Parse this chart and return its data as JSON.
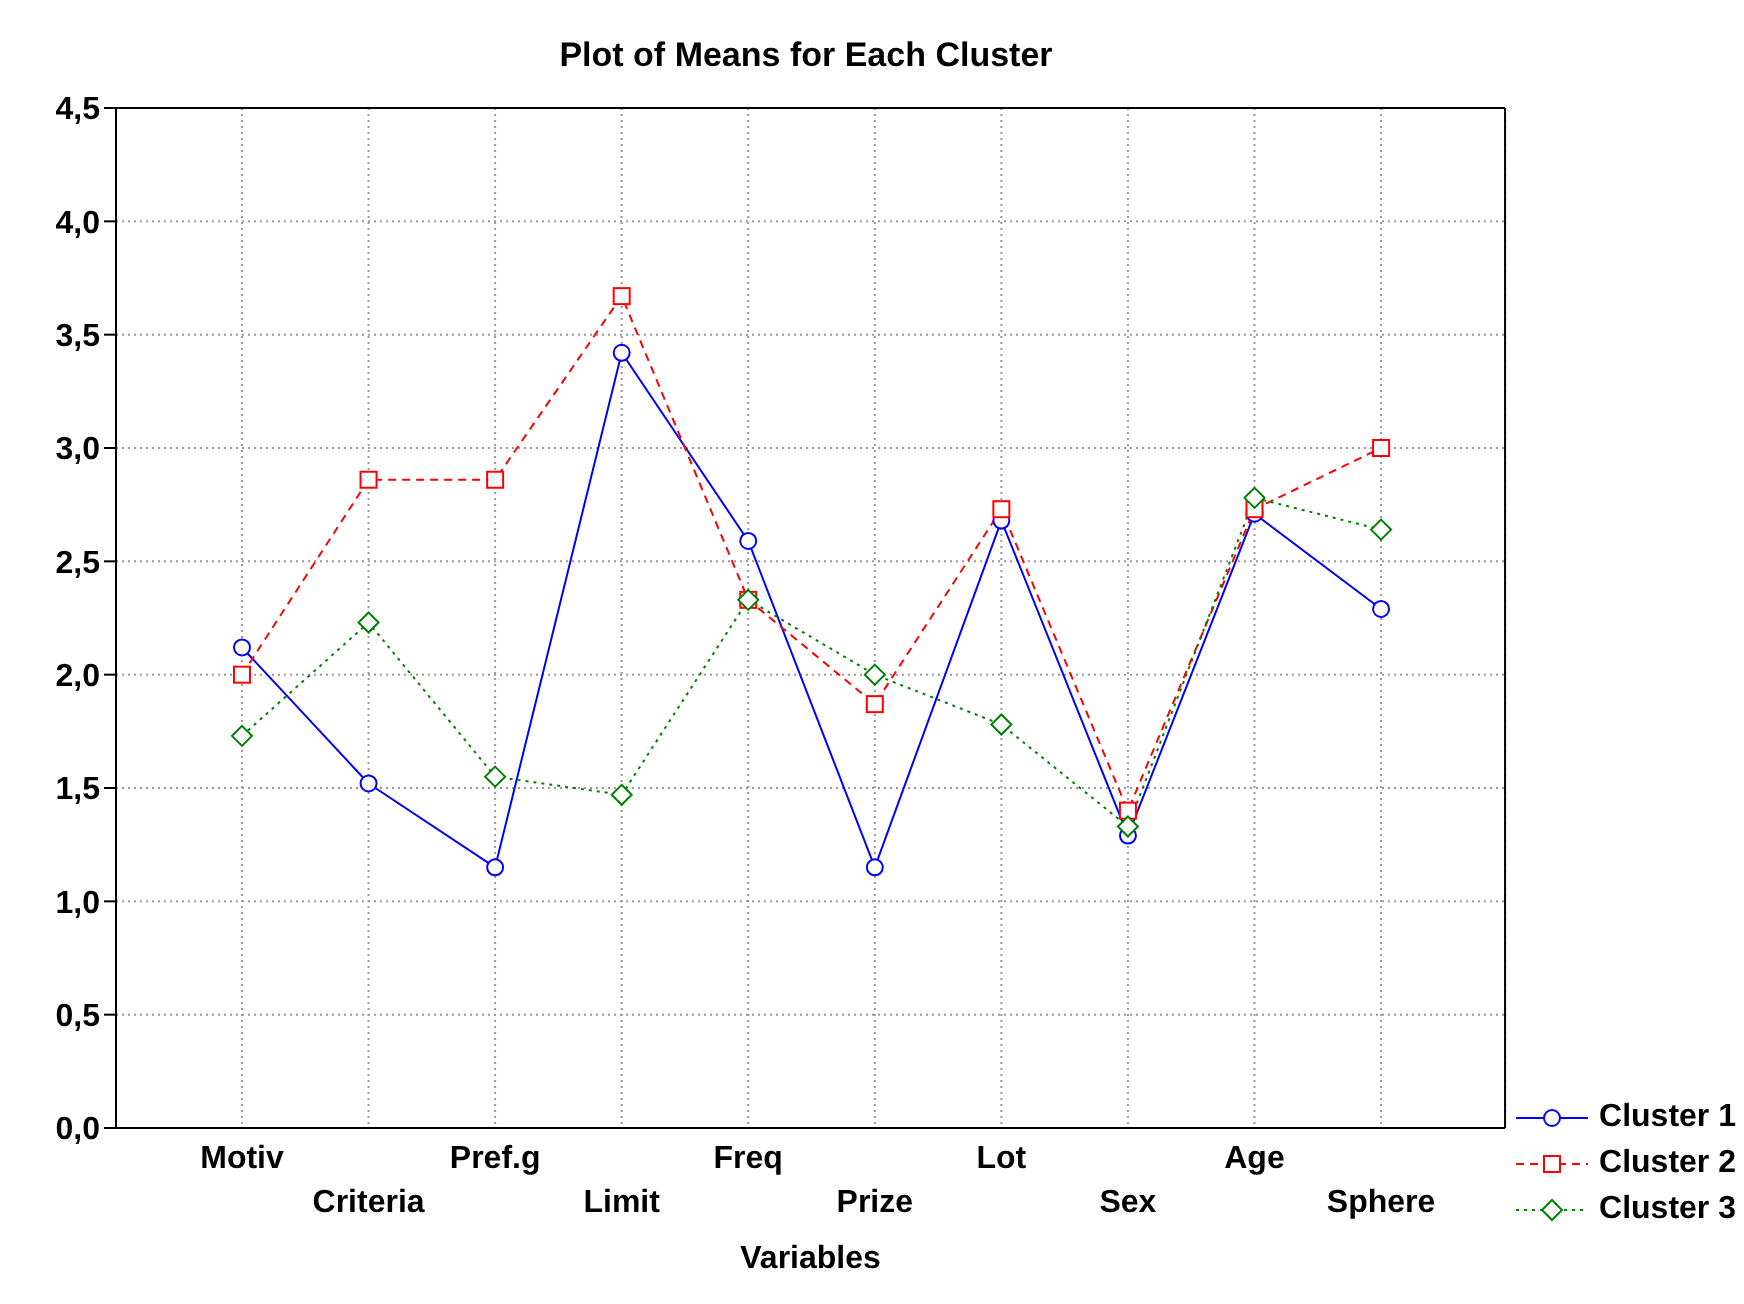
{
  "chart_data": {
    "type": "line",
    "title": "Plot of Means for Each Cluster",
    "xlabel": "Variables",
    "categories": [
      "Motiv",
      "Criteria",
      "Pref.g",
      "Limit",
      "Freq",
      "Prize",
      "Lot",
      "Sex",
      "Age",
      "Sphere"
    ],
    "series": [
      {
        "name": "Cluster 1",
        "color": "#0000ff",
        "marker": "circle",
        "line_style": "solid",
        "values": [
          2.12,
          1.52,
          1.15,
          3.42,
          2.59,
          1.15,
          2.68,
          1.29,
          2.71,
          2.29
        ]
      },
      {
        "name": "Cluster 2",
        "color": "#ff0000",
        "marker": "square",
        "line_style": "dashed",
        "values": [
          2.0,
          2.86,
          2.86,
          3.67,
          2.33,
          1.87,
          2.73,
          1.4,
          2.73,
          3.0
        ]
      },
      {
        "name": "Cluster 3",
        "color": "#008000",
        "marker": "diamond",
        "line_style": "dotted",
        "values": [
          1.73,
          2.23,
          1.55,
          1.47,
          2.33,
          2.0,
          1.78,
          1.33,
          2.78,
          2.64
        ]
      }
    ],
    "ylim": [
      0,
      4.5
    ],
    "yticks": [
      {
        "value": 0,
        "label": "0,0"
      },
      {
        "value": 0.5,
        "label": "0,5"
      },
      {
        "value": 1,
        "label": "1,0"
      },
      {
        "value": 1.5,
        "label": "1,5"
      },
      {
        "value": 2,
        "label": "2,0"
      },
      {
        "value": 2.5,
        "label": "2,5"
      },
      {
        "value": 3,
        "label": "3,0"
      },
      {
        "value": 3.5,
        "label": "3,5"
      },
      {
        "value": 4,
        "label": "4,0"
      },
      {
        "value": 4.5,
        "label": "4,5"
      }
    ],
    "grid": true,
    "legend": "bottom right"
  }
}
